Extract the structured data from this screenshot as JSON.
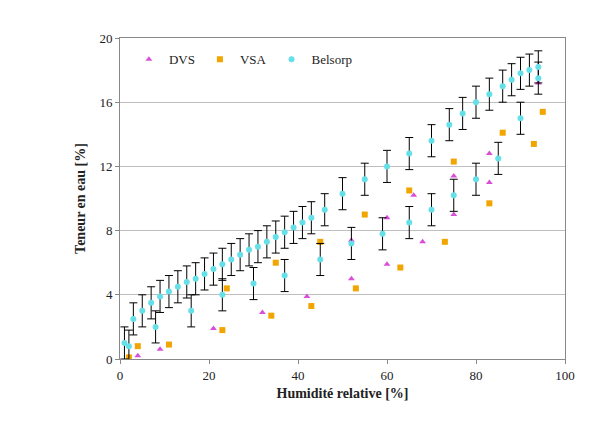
{
  "chart_data": {
    "type": "scatter",
    "x_label": "Humidité relative [%]",
    "y_label": "Teneur en eau [%]",
    "xlim": [
      0,
      100
    ],
    "xticks": [
      0,
      20,
      40,
      60,
      80,
      100
    ],
    "ylim": [
      0,
      20
    ],
    "yticks": [
      0,
      4,
      8,
      12,
      16,
      20
    ],
    "grid": "y",
    "legend": "upper left",
    "series": [
      {
        "name": "DVS",
        "color": "#d94fd9",
        "marker": "triangle-up",
        "x": [
          4,
          9,
          21,
          32,
          42,
          52,
          52,
          60,
          60,
          66,
          68,
          75,
          75,
          83,
          83,
          94
        ],
        "values": [
          0.2,
          0.6,
          1.9,
          2.9,
          3.9,
          5.0,
          7.4,
          5.9,
          8.8,
          10.2,
          7.3,
          9.0,
          11.4,
          11.0,
          12.8,
          17.2
        ]
      },
      {
        "name": "VSA",
        "color": "#f0a500",
        "marker": "square",
        "x": [
          2,
          4,
          11,
          23,
          24,
          34,
          35,
          43,
          45,
          53,
          55,
          63,
          65,
          73,
          75,
          83,
          86,
          93,
          95
        ],
        "values": [
          0.1,
          0.8,
          0.9,
          1.8,
          4.4,
          2.7,
          6.0,
          3.3,
          7.3,
          4.4,
          9.0,
          5.7,
          10.5,
          7.3,
          12.3,
          9.7,
          14.1,
          13.4,
          15.4
        ]
      },
      {
        "name": "Belsorp",
        "color": "#66e0e8",
        "marker": "circle",
        "x": [
          1,
          3,
          5,
          7,
          9,
          11,
          13,
          15,
          17,
          19,
          21,
          23,
          25,
          27,
          29,
          31,
          33,
          35,
          37,
          39,
          41,
          43,
          46,
          50,
          55,
          60,
          65,
          70,
          74,
          77,
          80,
          83,
          86,
          88,
          90,
          92,
          94,
          2,
          8,
          16,
          23,
          30,
          37,
          45,
          52,
          59,
          65,
          70,
          75,
          80,
          85,
          90,
          94
        ],
        "values": [
          1.0,
          2.5,
          3.0,
          3.5,
          3.9,
          4.2,
          4.5,
          4.8,
          5.0,
          5.3,
          5.6,
          5.9,
          6.2,
          6.5,
          6.8,
          7.0,
          7.3,
          7.6,
          7.9,
          8.2,
          8.5,
          8.8,
          9.3,
          10.3,
          11.2,
          12.0,
          12.8,
          13.6,
          14.6,
          15.3,
          16.0,
          16.5,
          17.0,
          17.4,
          17.8,
          18.0,
          18.2,
          0.8,
          2.0,
          3.0,
          4.0,
          4.7,
          5.2,
          6.2,
          7.2,
          7.8,
          8.5,
          9.3,
          10.2,
          11.2,
          12.5,
          15.0,
          17.5
        ],
        "error": [
          1.0,
          1.0,
          1.0,
          1.0,
          1.0,
          1.0,
          1.0,
          1.0,
          1.0,
          1.0,
          1.0,
          1.0,
          1.0,
          1.0,
          1.0,
          1.0,
          1.0,
          1.0,
          1.0,
          1.0,
          1.0,
          1.0,
          1.0,
          1.0,
          1.0,
          1.0,
          1.0,
          1.0,
          1.0,
          1.0,
          1.0,
          1.0,
          1.0,
          1.0,
          1.0,
          1.0,
          1.0,
          1.0,
          1.0,
          1.0,
          1.0,
          1.0,
          1.0,
          1.0,
          1.0,
          1.0,
          1.0,
          1.0,
          1.0,
          1.0,
          1.0,
          1.0,
          1.0
        ]
      }
    ]
  }
}
